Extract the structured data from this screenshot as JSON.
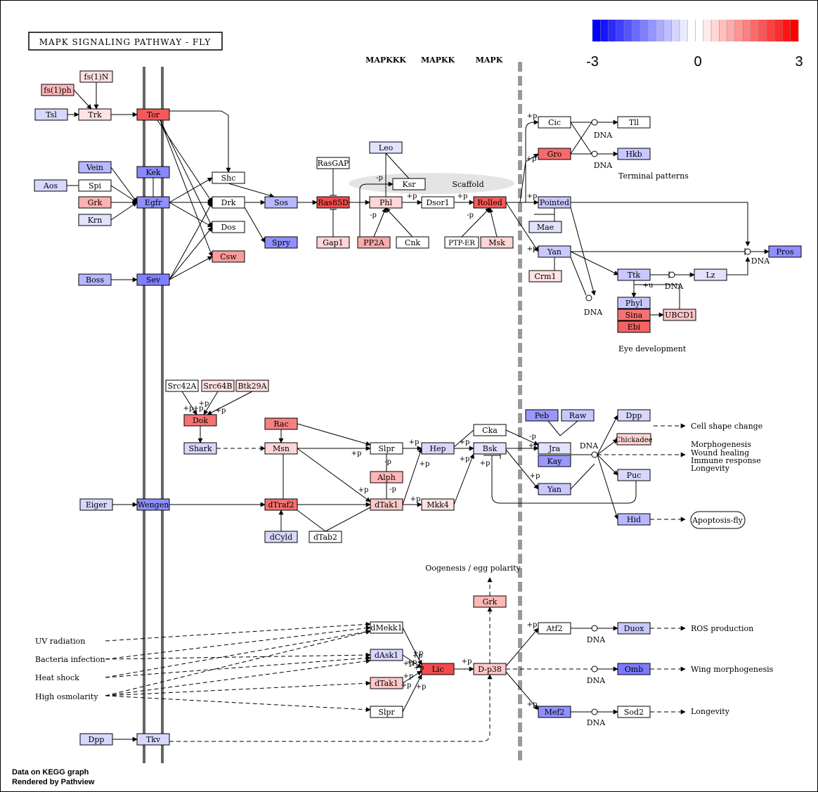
{
  "title": "MAPK SIGNALING PATHWAY - FLY",
  "footer": [
    "Data on KEGG graph",
    "Rendered by Pathview"
  ],
  "scale": {
    "min_label": "-3",
    "mid_label": "0",
    "max_label": "3",
    "colors": [
      "#0000ff",
      "#1515ff",
      "#2a2aff",
      "#4040ff",
      "#5555ff",
      "#6a6aff",
      "#8080ff",
      "#9595ff",
      "#aaaaff",
      "#bfbfff",
      "#d5d5ff",
      "#eaeaff",
      "#ffffff",
      "#ffffff",
      "#ffeaea",
      "#ffd5d5",
      "#ffbfbf",
      "#ffaaaa",
      "#ff9595",
      "#ff8080",
      "#ff6a6a",
      "#ff5555",
      "#ff4040",
      "#ff2a2a",
      "#ff1515",
      "#ff0000"
    ]
  },
  "section_labels": {
    "mapkkk": "MAPKKK",
    "mapkk": "MAPKK",
    "mapk": "MAPK",
    "scaffold": "Scaffold"
  },
  "genes": [
    {
      "id": "fs1n",
      "label": "fs(1)N",
      "color": "#ffe2e2"
    },
    {
      "id": "fs1ph",
      "label": "fs(1)ph",
      "color": "#ffb8b8"
    },
    {
      "id": "tsl",
      "label": "Tsl",
      "color": "#d8d8ff"
    },
    {
      "id": "trk",
      "label": "Trk",
      "color": "#ffe2e2"
    },
    {
      "id": "tor",
      "label": "Tor",
      "color": "#f55a5a"
    },
    {
      "id": "vein",
      "label": "Vein",
      "color": "#b8b8ff"
    },
    {
      "id": "kek",
      "label": "Kek",
      "color": "#8888ff"
    },
    {
      "id": "aos",
      "label": "Aos",
      "color": "#d8d8ff"
    },
    {
      "id": "spi",
      "label": "Spi",
      "color": "#ffffff"
    },
    {
      "id": "grk1",
      "label": "Grk",
      "color": "#ffb0b0"
    },
    {
      "id": "egfr",
      "label": "Egfr",
      "color": "#8f8fff"
    },
    {
      "id": "krn",
      "label": "Krn",
      "color": "#e2e2ff"
    },
    {
      "id": "boss",
      "label": "Boss",
      "color": "#b8b8ff"
    },
    {
      "id": "sev",
      "label": "Sev",
      "color": "#8080ff"
    },
    {
      "id": "shc",
      "label": "Shc",
      "color": "#ffffff"
    },
    {
      "id": "drk",
      "label": "Drk",
      "color": "#ffffff"
    },
    {
      "id": "dos",
      "label": "Dos",
      "color": "#ffffff"
    },
    {
      "id": "csw",
      "label": "Csw",
      "color": "#ff9a9a"
    },
    {
      "id": "sos",
      "label": "Sos",
      "color": "#b8b8ff"
    },
    {
      "id": "spry",
      "label": "Spry",
      "color": "#8f8fff"
    },
    {
      "id": "rasgap",
      "label": "RasGAP",
      "color": "#ffffff"
    },
    {
      "id": "ras85d",
      "label": "Ras85D",
      "color": "#f24b4b"
    },
    {
      "id": "gap1",
      "label": "Gap1",
      "color": "#ffd5d5"
    },
    {
      "id": "leo",
      "label": "Leo",
      "color": "#e2e2ff"
    },
    {
      "id": "ksr",
      "label": "Ksr",
      "color": "#ffffff"
    },
    {
      "id": "phl",
      "label": "Phl",
      "color": "#ffd5d5"
    },
    {
      "id": "pp2a",
      "label": "PP2A",
      "color": "#ffaaaa"
    },
    {
      "id": "cnk",
      "label": "Cnk",
      "color": "#ffffff"
    },
    {
      "id": "dsor1",
      "label": "Dsor1",
      "color": "#ffffff"
    },
    {
      "id": "rolled",
      "label": "Rolled",
      "color": "#f55a5a"
    },
    {
      "id": "ptper",
      "label": "PTP-ER",
      "color": "#ffffff"
    },
    {
      "id": "msk",
      "label": "Msk",
      "color": "#ffd5d5"
    },
    {
      "id": "cic",
      "label": "Cic",
      "color": "#ffffff"
    },
    {
      "id": "tll",
      "label": "Tll",
      "color": "#ffffff"
    },
    {
      "id": "gro",
      "label": "Gro",
      "color": "#f56a6a"
    },
    {
      "id": "hkb",
      "label": "Hkb",
      "color": "#c8c8ff"
    },
    {
      "id": "pointed",
      "label": "Pointed",
      "color": "#c8c8ff"
    },
    {
      "id": "mae",
      "label": "Mae",
      "color": "#e2e2ff"
    },
    {
      "id": "yan1",
      "label": "Yan",
      "color": "#c8c8ff"
    },
    {
      "id": "crm1",
      "label": "Crm1",
      "color": "#ffe2e2"
    },
    {
      "id": "pros",
      "label": "Pros",
      "color": "#8f8fff"
    },
    {
      "id": "ttk",
      "label": "Ttk",
      "color": "#c8c8ff"
    },
    {
      "id": "lz",
      "label": "Lz",
      "color": "#e2e2ff"
    },
    {
      "id": "phyl",
      "label": "Phyl",
      "color": "#c8c8ff"
    },
    {
      "id": "sina",
      "label": "Sina",
      "color": "#f57272"
    },
    {
      "id": "ebi",
      "label": "Ebi",
      "color": "#f56262"
    },
    {
      "id": "ubcd1",
      "label": "UBCD1",
      "color": "#ffc8c8"
    },
    {
      "id": "src42a",
      "label": "Src42A",
      "color": "#ffffff"
    },
    {
      "id": "src64b",
      "label": "Src64B",
      "color": "#ffe2e2"
    },
    {
      "id": "btk29a",
      "label": "Btk29A",
      "color": "#ffe2e2"
    },
    {
      "id": "dok",
      "label": "Dok",
      "color": "#f57272"
    },
    {
      "id": "shark",
      "label": "Shark",
      "color": "#d8d8ff"
    },
    {
      "id": "rac",
      "label": "Rac",
      "color": "#f58080"
    },
    {
      "id": "msn",
      "label": "Msn",
      "color": "#ffd5d5"
    },
    {
      "id": "slpr1",
      "label": "Slpr",
      "color": "#ffffff"
    },
    {
      "id": "hep",
      "label": "Hep",
      "color": "#d8d8ff"
    },
    {
      "id": "cka",
      "label": "Cka",
      "color": "#ffffff"
    },
    {
      "id": "bsk",
      "label": "Bsk",
      "color": "#e2e2ff"
    },
    {
      "id": "alph",
      "label": "Alph",
      "color": "#ffb8b8"
    },
    {
      "id": "pebm",
      "label": "Peb",
      "color": "#9898ff"
    },
    {
      "id": "raw",
      "label": "Raw",
      "color": "#c8c8ff"
    },
    {
      "id": "jra",
      "label": "Jra",
      "color": "#e2e2ff"
    },
    {
      "id": "kay",
      "label": "Kay",
      "color": "#9898ff"
    },
    {
      "id": "yan2",
      "label": "Yan",
      "color": "#c8c8ff"
    },
    {
      "id": "dpp1",
      "label": "Dpp",
      "color": "#d8d8ff"
    },
    {
      "id": "chickadee",
      "label": "Chickadee",
      "color": "#ffd5d5"
    },
    {
      "id": "puc",
      "label": "Puc",
      "color": "#d8d8ff"
    },
    {
      "id": "hid",
      "label": "Hid",
      "color": "#b8b8ff"
    },
    {
      "id": "eiger",
      "label": "Eiger",
      "color": "#d8d8ff"
    },
    {
      "id": "wengen",
      "label": "Wengen",
      "color": "#8f8fff"
    },
    {
      "id": "dtraf2",
      "label": "dTraf2",
      "color": "#f57272"
    },
    {
      "id": "dtak1a",
      "label": "dTak1",
      "color": "#ffc8c8"
    },
    {
      "id": "mkk4",
      "label": "Mkk4",
      "color": "#ffe2e2"
    },
    {
      "id": "dcyld",
      "label": "dCyld",
      "color": "#d8d8ff"
    },
    {
      "id": "dtab2",
      "label": "dTab2",
      "color": "#ffffff"
    },
    {
      "id": "grk2",
      "label": "Grk",
      "color": "#ffb8b8"
    },
    {
      "id": "dmekk1",
      "label": "dMekk1",
      "color": "#ffffff"
    },
    {
      "id": "dask1",
      "label": "dAsk1",
      "color": "#d8d8ff"
    },
    {
      "id": "dtak1b",
      "label": "dTak1",
      "color": "#ffc8c8"
    },
    {
      "id": "slpr2",
      "label": "Slpr",
      "color": "#ffffff"
    },
    {
      "id": "lic",
      "label": "Lic",
      "color": "#f24b4b"
    },
    {
      "id": "dp38",
      "label": "D-p38",
      "color": "#ffc8c8"
    },
    {
      "id": "atf2",
      "label": "Atf2",
      "color": "#ffffff"
    },
    {
      "id": "duox",
      "label": "Duox",
      "color": "#c8c8ff"
    },
    {
      "id": "omb",
      "label": "Omb",
      "color": "#7a7aff"
    },
    {
      "id": "mef2",
      "label": "Mef2",
      "color": "#9090ff"
    },
    {
      "id": "sod2",
      "label": "Sod2",
      "color": "#ffffff"
    },
    {
      "id": "dpp2",
      "label": "Dpp",
      "color": "#d8d8ff"
    },
    {
      "id": "tkv",
      "label": "Tkv",
      "color": "#d8d8ff"
    }
  ],
  "texts": [
    {
      "id": "dna1",
      "label": "DNA"
    },
    {
      "id": "dna2",
      "label": "DNA"
    },
    {
      "id": "dna3",
      "label": "DNA"
    },
    {
      "id": "dna4",
      "label": "DNA"
    },
    {
      "id": "dna5",
      "label": "DNA"
    },
    {
      "id": "dna6",
      "label": "DNA"
    },
    {
      "id": "dna7",
      "label": "DNA"
    },
    {
      "id": "dna8",
      "label": "DNA"
    },
    {
      "id": "dna9",
      "label": "DNA"
    },
    {
      "id": "dna10",
      "label": "DNA"
    },
    {
      "id": "terminal",
      "label": "Terminal patterns"
    },
    {
      "id": "eyedev",
      "label": "Eye development"
    },
    {
      "id": "cellshape",
      "label": "Cell shape change"
    },
    {
      "id": "morph",
      "label": "Morphogenesis"
    },
    {
      "id": "wound",
      "label": "Wound healing"
    },
    {
      "id": "immune",
      "label": "Immune response"
    },
    {
      "id": "longev1",
      "label": "Longevity"
    },
    {
      "id": "oogen",
      "label": "Oogenesis / egg polarity"
    },
    {
      "id": "ros",
      "label": "ROS production"
    },
    {
      "id": "wingm",
      "label": "Wing morphogenesis"
    },
    {
      "id": "longev2",
      "label": "Longevity"
    },
    {
      "id": "uv",
      "label": "UV radiation"
    },
    {
      "id": "bact",
      "label": "Bacteria infection"
    },
    {
      "id": "heat",
      "label": "Heat shock"
    },
    {
      "id": "hiosm",
      "label": "High osmolarity"
    },
    {
      "id": "apop",
      "label": "Apoptosis-fly"
    }
  ],
  "modifiers": [
    {
      "id": "m1",
      "label": "+p"
    },
    {
      "id": "m2",
      "label": "+p"
    },
    {
      "id": "m3",
      "label": "+p"
    },
    {
      "id": "m4",
      "label": "+p"
    },
    {
      "id": "m5",
      "label": "-p"
    },
    {
      "id": "m6",
      "label": "-p"
    },
    {
      "id": "m7",
      "label": "-p"
    },
    {
      "id": "m8",
      "label": "+p"
    },
    {
      "id": "m9",
      "label": "+p"
    },
    {
      "id": "m10",
      "label": "+p"
    },
    {
      "id": "m11",
      "label": "+u"
    },
    {
      "id": "m12",
      "label": "+p"
    },
    {
      "id": "m13",
      "label": "+p"
    },
    {
      "id": "m14",
      "label": "+p"
    },
    {
      "id": "m15",
      "label": "+p"
    },
    {
      "id": "m16",
      "label": "+p"
    },
    {
      "id": "m17",
      "label": "+p"
    },
    {
      "id": "m18",
      "label": "+p"
    },
    {
      "id": "m19",
      "label": "-p"
    },
    {
      "id": "m20",
      "label": "-p"
    },
    {
      "id": "m21",
      "label": "+p"
    },
    {
      "id": "m22",
      "label": "+p"
    },
    {
      "id": "m23",
      "label": "+p"
    },
    {
      "id": "m24",
      "label": "+p"
    },
    {
      "id": "m25",
      "label": "+p"
    },
    {
      "id": "m26",
      "label": "+p"
    },
    {
      "id": "m27",
      "label": "-p"
    },
    {
      "id": "m28",
      "label": "+p"
    },
    {
      "id": "m29",
      "label": "+p"
    },
    {
      "id": "m30",
      "label": "+p"
    },
    {
      "id": "m31",
      "label": "+p"
    },
    {
      "id": "m32",
      "label": "+p"
    },
    {
      "id": "m33",
      "label": "+p"
    },
    {
      "id": "m34",
      "label": "+p"
    },
    {
      "id": "m35",
      "label": "+p"
    },
    {
      "id": "m36",
      "label": "+p"
    },
    {
      "id": "m37",
      "label": "+p"
    },
    {
      "id": "m38",
      "label": "+p"
    }
  ]
}
